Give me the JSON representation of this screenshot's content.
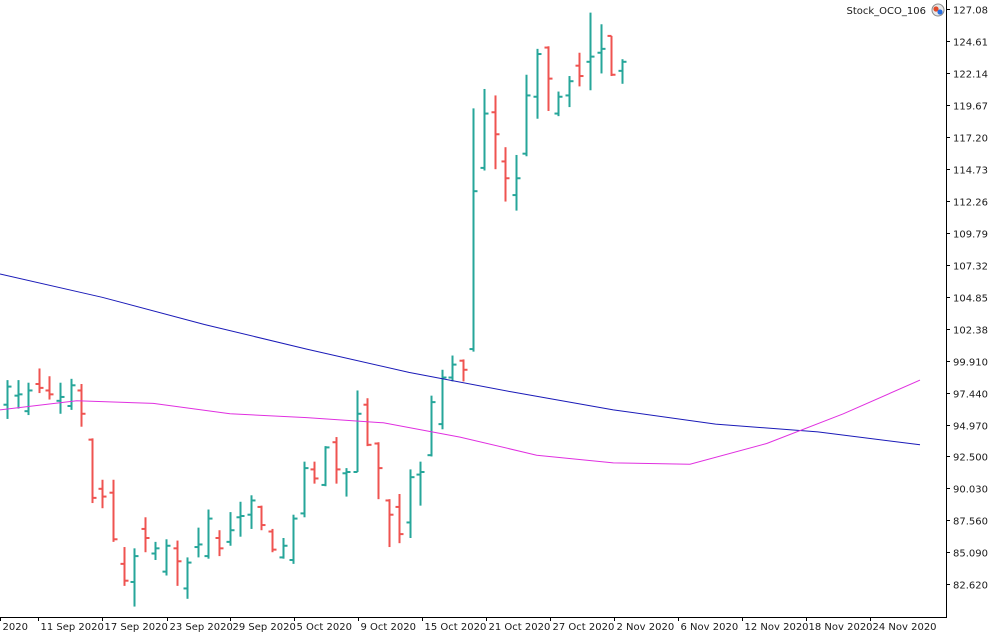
{
  "chart_title": "Stock_OCO_106",
  "colors": {
    "up": "#26a69a",
    "down": "#ef5350",
    "ma_slow": "#1a1ab8",
    "ma_fast": "#e030e0",
    "axis": "#000000",
    "logo_icon": "#e04a2a"
  },
  "chart_data": {
    "type": "ohlc",
    "title": "Stock_OCO_106",
    "ylim": [
      80.9,
      128.0
    ],
    "y_ticks": [
      "127.080",
      "124.610",
      "122.140",
      "119.670",
      "117.200",
      "114.730",
      "112.260",
      "109.790",
      "107.320",
      "104.850",
      "102.380",
      "99.910",
      "97.440",
      "94.970",
      "92.500",
      "90.030",
      "87.560",
      "85.090",
      "82.620"
    ],
    "x_ticks": [
      "2020",
      "11 Sep 2020",
      "17 Sep 2020",
      "23 Sep 2020",
      "29 Sep 2020",
      "5 Oct 2020",
      "9 Oct 2020",
      "15 Oct 2020",
      "21 Oct 2020",
      "27 Oct 2020",
      "2 Nov 2020",
      "6 Nov 2020",
      "12 Nov 2020",
      "18 Nov 2020",
      "24 Nov 2020"
    ],
    "bars": [
      {
        "o": 96.5,
        "h": 98.4,
        "l": 95.4,
        "c": 97.9
      },
      {
        "o": 97.2,
        "h": 98.4,
        "l": 96.2,
        "c": 97.3
      },
      {
        "o": 96.0,
        "h": 98.2,
        "l": 95.7,
        "c": 97.6
      },
      {
        "o": 98.1,
        "h": 99.3,
        "l": 97.4,
        "c": 97.8
      },
      {
        "o": 97.6,
        "h": 98.7,
        "l": 96.9,
        "c": 97.3
      },
      {
        "o": 96.8,
        "h": 98.2,
        "l": 95.8,
        "c": 97.1
      },
      {
        "o": 96.4,
        "h": 98.5,
        "l": 96.1,
        "c": 98.0
      },
      {
        "o": 97.6,
        "h": 98.1,
        "l": 94.8,
        "c": 95.8
      },
      {
        "o": 93.8,
        "h": 93.9,
        "l": 88.9,
        "c": 89.3
      },
      {
        "o": 90.0,
        "h": 90.7,
        "l": 88.5,
        "c": 89.4
      },
      {
        "o": 89.7,
        "h": 90.7,
        "l": 85.9,
        "c": 86.1
      },
      {
        "o": 84.2,
        "h": 85.5,
        "l": 82.5,
        "c": 82.9
      },
      {
        "o": 82.8,
        "h": 85.4,
        "l": 80.9,
        "c": 84.8
      },
      {
        "o": 86.9,
        "h": 87.8,
        "l": 85.1,
        "c": 86.2
      },
      {
        "o": 85.0,
        "h": 85.9,
        "l": 84.5,
        "c": 85.4
      },
      {
        "o": 83.6,
        "h": 86.1,
        "l": 83.3,
        "c": 85.6
      },
      {
        "o": 85.4,
        "h": 86.0,
        "l": 82.5,
        "c": 84.4
      },
      {
        "o": 82.3,
        "h": 84.7,
        "l": 81.5,
        "c": 84.3
      },
      {
        "o": 85.5,
        "h": 87.0,
        "l": 84.7,
        "c": 85.7
      },
      {
        "o": 84.8,
        "h": 88.4,
        "l": 84.6,
        "c": 87.7
      },
      {
        "o": 86.2,
        "h": 86.8,
        "l": 84.8,
        "c": 85.4
      },
      {
        "o": 85.9,
        "h": 88.2,
        "l": 85.6,
        "c": 86.8
      },
      {
        "o": 87.8,
        "h": 89.0,
        "l": 86.3,
        "c": 87.9
      },
      {
        "o": 88.0,
        "h": 89.5,
        "l": 86.9,
        "c": 89.1
      },
      {
        "o": 88.6,
        "h": 88.7,
        "l": 86.8,
        "c": 87.2
      },
      {
        "o": 86.7,
        "h": 86.9,
        "l": 85.1,
        "c": 85.3
      },
      {
        "o": 84.7,
        "h": 86.2,
        "l": 84.6,
        "c": 85.6
      },
      {
        "o": 84.5,
        "h": 88.0,
        "l": 84.2,
        "c": 87.7
      },
      {
        "o": 88.1,
        "h": 92.1,
        "l": 87.8,
        "c": 91.6
      },
      {
        "o": 91.5,
        "h": 92.1,
        "l": 90.4,
        "c": 90.8
      },
      {
        "o": 90.3,
        "h": 93.3,
        "l": 90.2,
        "c": 93.2
      },
      {
        "o": 93.6,
        "h": 94.0,
        "l": 90.4,
        "c": 91.5
      },
      {
        "o": 91.2,
        "h": 91.6,
        "l": 89.4,
        "c": 91.3
      },
      {
        "o": 91.3,
        "h": 97.6,
        "l": 91.3,
        "c": 95.8
      },
      {
        "o": 96.5,
        "h": 97.0,
        "l": 93.3,
        "c": 93.4
      },
      {
        "o": 93.5,
        "h": 93.6,
        "l": 89.2,
        "c": 91.6
      },
      {
        "o": 89.1,
        "h": 89.2,
        "l": 85.5,
        "c": 88.0
      },
      {
        "o": 88.6,
        "h": 89.6,
        "l": 85.8,
        "c": 86.5
      },
      {
        "o": 87.4,
        "h": 91.5,
        "l": 86.2,
        "c": 90.9
      },
      {
        "o": 91.1,
        "h": 92.1,
        "l": 88.7,
        "c": 91.3
      },
      {
        "o": 92.6,
        "h": 97.2,
        "l": 92.5,
        "c": 96.7
      },
      {
        "o": 95.0,
        "h": 99.2,
        "l": 94.6,
        "c": 98.6
      },
      {
        "o": 98.6,
        "h": 100.3,
        "l": 98.3,
        "c": 99.6
      },
      {
        "o": 99.9,
        "h": 100.0,
        "l": 98.3,
        "c": 99.2
      },
      {
        "o": 100.8,
        "h": 119.4,
        "l": 100.6,
        "c": 113.0
      },
      {
        "o": 114.8,
        "h": 120.9,
        "l": 114.6,
        "c": 119.0
      },
      {
        "o": 119.1,
        "h": 120.4,
        "l": 114.7,
        "c": 117.4
      },
      {
        "o": 115.3,
        "h": 116.4,
        "l": 112.2,
        "c": 114.0
      },
      {
        "o": 112.7,
        "h": 115.8,
        "l": 111.5,
        "c": 114.0
      },
      {
        "o": 115.9,
        "h": 122.0,
        "l": 115.7,
        "c": 120.4
      },
      {
        "o": 120.3,
        "h": 124.0,
        "l": 118.6,
        "c": 123.6
      },
      {
        "o": 124.1,
        "h": 124.2,
        "l": 119.2,
        "c": 121.7
      },
      {
        "o": 119.0,
        "h": 120.7,
        "l": 118.8,
        "c": 120.3
      },
      {
        "o": 120.4,
        "h": 121.9,
        "l": 119.5,
        "c": 121.5
      },
      {
        "o": 122.7,
        "h": 123.7,
        "l": 121.1,
        "c": 121.9
      },
      {
        "o": 123.0,
        "h": 126.8,
        "l": 120.8,
        "c": 123.4
      },
      {
        "o": 123.7,
        "h": 125.9,
        "l": 122.1,
        "c": 124.0
      },
      {
        "o": 125.0,
        "h": 125.0,
        "l": 121.9,
        "c": 122.0
      },
      {
        "o": 122.3,
        "h": 123.2,
        "l": 121.3,
        "c": 123.0
      }
    ],
    "ma_slow": [
      106.6,
      104.8,
      102.7,
      100.8,
      99.0,
      97.5,
      96.1,
      95.0,
      94.4,
      93.4
    ],
    "ma_fast": [
      96.1,
      96.8,
      96.6,
      95.8,
      95.5,
      95.1,
      94.0,
      92.6,
      92.0,
      91.9,
      93.5,
      95.8,
      98.4
    ]
  }
}
